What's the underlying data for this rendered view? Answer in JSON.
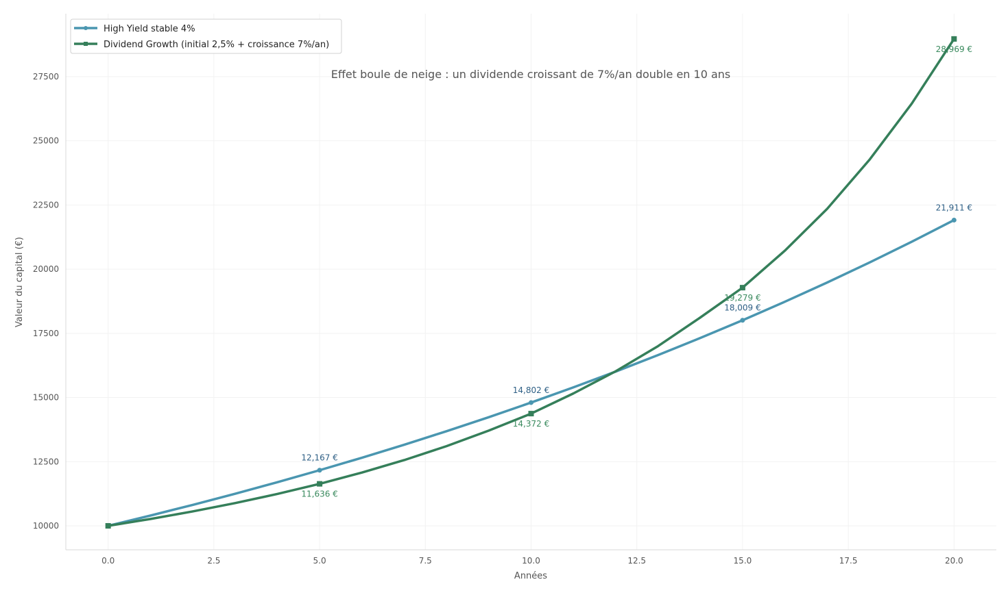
{
  "chart_data": {
    "type": "line",
    "title": "",
    "annotation_text": "Effet boule de neige : un dividende croissant de 7%/an double en 10 ans",
    "xlabel": "Années",
    "ylabel": "Valeur du capital (€)",
    "xlim": [
      -1,
      21
    ],
    "ylim": [
      9066,
      29952
    ],
    "xticks": [
      "0.0",
      "2.5",
      "5.0",
      "7.5",
      "10.0",
      "12.5",
      "15.0",
      "17.5",
      "20.0"
    ],
    "yticks": [
      "10000",
      "12500",
      "15000",
      "17500",
      "20000",
      "22500",
      "25000",
      "27500"
    ],
    "grid": true,
    "legend_position": "top-left",
    "x": [
      0,
      1,
      2,
      3,
      4,
      5,
      6,
      7,
      8,
      9,
      10,
      11,
      12,
      13,
      14,
      15,
      16,
      17,
      18,
      19,
      20
    ],
    "series": [
      {
        "name": "High Yield stable 4%",
        "color": "#4a96b0",
        "label_color": "#2e5f85",
        "marker": "circle",
        "values": [
          10000,
          10400,
          10816,
          11249,
          11699,
          12167,
          12653,
          13159,
          13686,
          14233,
          14802,
          15395,
          16010,
          16651,
          17317,
          18009,
          18730,
          19479,
          20258,
          21068,
          21911
        ],
        "labels": [
          {
            "x": 5,
            "y": 12167,
            "text": "12,167 €"
          },
          {
            "x": 10,
            "y": 14802,
            "text": "14,802 €"
          },
          {
            "x": 15,
            "y": 18009,
            "text": "18,009 €"
          },
          {
            "x": 20,
            "y": 21911,
            "text": "21,911 €"
          }
        ]
      },
      {
        "name": "Dividend Growth (initial 2,5% + croissance 7%/an)",
        "color": "#357f5a",
        "label_color": "#3a8a5e",
        "marker": "square",
        "values": [
          10000,
          10267,
          10561,
          10884,
          11241,
          11636,
          12074,
          12561,
          13104,
          13711,
          14372,
          15158,
          16021,
          16999,
          18115,
          19279,
          20720,
          22350,
          24260,
          26450,
          28969
        ],
        "labels": [
          {
            "x": 5,
            "y": 11636,
            "text": "11,636 €"
          },
          {
            "x": 10,
            "y": 14372,
            "text": "14,372 €"
          },
          {
            "x": 15,
            "y": 19279,
            "text": "19,279 €"
          },
          {
            "x": 20,
            "y": 28969,
            "text": "28,969 €"
          }
        ]
      }
    ]
  }
}
